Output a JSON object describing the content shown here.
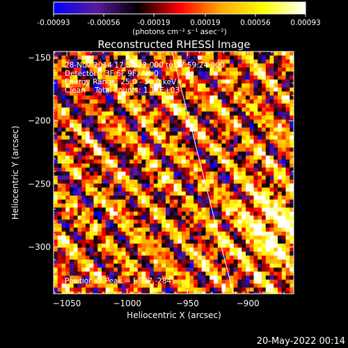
{
  "chart_data": {
    "type": "heatmap",
    "colorbar": {
      "tick_labels": [
        "-0.00093",
        "-0.00056",
        "-0.00019",
        "0.00019",
        "0.00056",
        "0.00093"
      ],
      "range": [
        -0.00093,
        0.00093
      ],
      "unit_label": "(photons cm⁻² s⁻¹ asec⁻²)",
      "colormap": [
        "#0000ff",
        "#5a1aa0",
        "#000000",
        "#ff0000",
        "#ffaa00",
        "#ffff00",
        "#ffffff"
      ]
    },
    "title": "Reconstructed RHESSI Image",
    "xlabel": "Heliocentric X (arcsec)",
    "ylabel": "Heliocentric Y (arcsec)",
    "xlim": [
      -1061,
      -862
    ],
    "ylim": [
      -337,
      -145
    ],
    "x_ticks": [
      -1050,
      -1000,
      -950,
      -900
    ],
    "x_tick_labels": [
      "−1050",
      "−1000",
      "−950",
      "−900"
    ],
    "y_ticks": [
      -150,
      -200,
      -250,
      -300
    ],
    "y_tick_labels": [
      "−150",
      "−200",
      "−250",
      "−300"
    ],
    "limb_line": [
      [
        -963,
        -145
      ],
      [
        -912,
        -337
      ]
    ],
    "annotations": [
      "28-Nov-2014 17:57:12.000 to 17:59:24.000",
      "Detectors: 3F 6F 9F, Att 0",
      "Energy Range: 25.0 - 50.0 keV",
      "Clean    Total counts: 1.17E+03"
    ],
    "peak_label": "Position of Peak = [-877,-284]",
    "peak": [
      -877,
      -284
    ],
    "grid": false
  },
  "footer": {
    "timestamp": "20-May-2022 00:14"
  }
}
